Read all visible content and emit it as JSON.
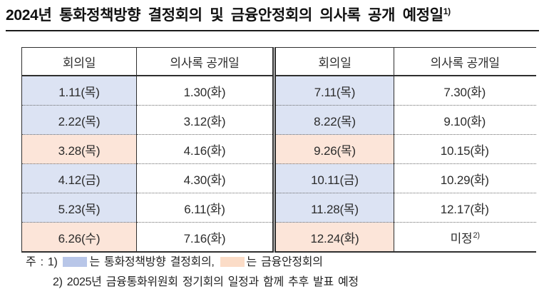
{
  "title": {
    "text": "2024년 통화정책방향 결정회의 및 금융안정회의 의사록 공개 예정일",
    "sup": "1)"
  },
  "colors": {
    "mpc_cell": "#dce3f3",
    "fsm_cell": "#fce5d9",
    "legend_mpc": "#b8c6e8",
    "legend_fsm": "#fbdcc7"
  },
  "table": {
    "headers": [
      "회의일",
      "의사록 공개일",
      "회의일",
      "의사록 공개일"
    ],
    "rows": [
      {
        "l_meeting": "1.11(목)",
        "l_type": "mpc",
        "l_release": "1.30(화)",
        "r_meeting": "7.11(목)",
        "r_type": "mpc",
        "r_release": "7.30(화)",
        "r_release_sup": ""
      },
      {
        "l_meeting": "2.22(목)",
        "l_type": "mpc",
        "l_release": "3.12(화)",
        "r_meeting": "8.22(목)",
        "r_type": "mpc",
        "r_release": "9.10(화)",
        "r_release_sup": ""
      },
      {
        "l_meeting": "3.28(목)",
        "l_type": "fsm",
        "l_release": "4.16(화)",
        "r_meeting": "9.26(목)",
        "r_type": "fsm",
        "r_release": "10.15(화)",
        "r_release_sup": ""
      },
      {
        "l_meeting": "4.12(금)",
        "l_type": "mpc",
        "l_release": "4.30(화)",
        "r_meeting": "10.11(금)",
        "r_type": "mpc",
        "r_release": "10.29(화)",
        "r_release_sup": ""
      },
      {
        "l_meeting": "5.23(목)",
        "l_type": "mpc",
        "l_release": "6.11(화)",
        "r_meeting": "11.28(목)",
        "r_type": "mpc",
        "r_release": "12.17(화)",
        "r_release_sup": ""
      },
      {
        "l_meeting": "6.26(수)",
        "l_type": "fsm",
        "l_release": "7.16(화)",
        "r_meeting": "12.24(화)",
        "r_type": "fsm",
        "r_release": "미정",
        "r_release_sup": "2)"
      }
    ]
  },
  "notes": {
    "prefix": "주 : 1)",
    "legend_mpc_text": "는 통화정책방향 결정회의,",
    "legend_fsm_text": "는 금융안정회의",
    "note2": "2) 2025년 금융통화위원회 정기회의 일정과 함께 추후 발표 예정"
  }
}
